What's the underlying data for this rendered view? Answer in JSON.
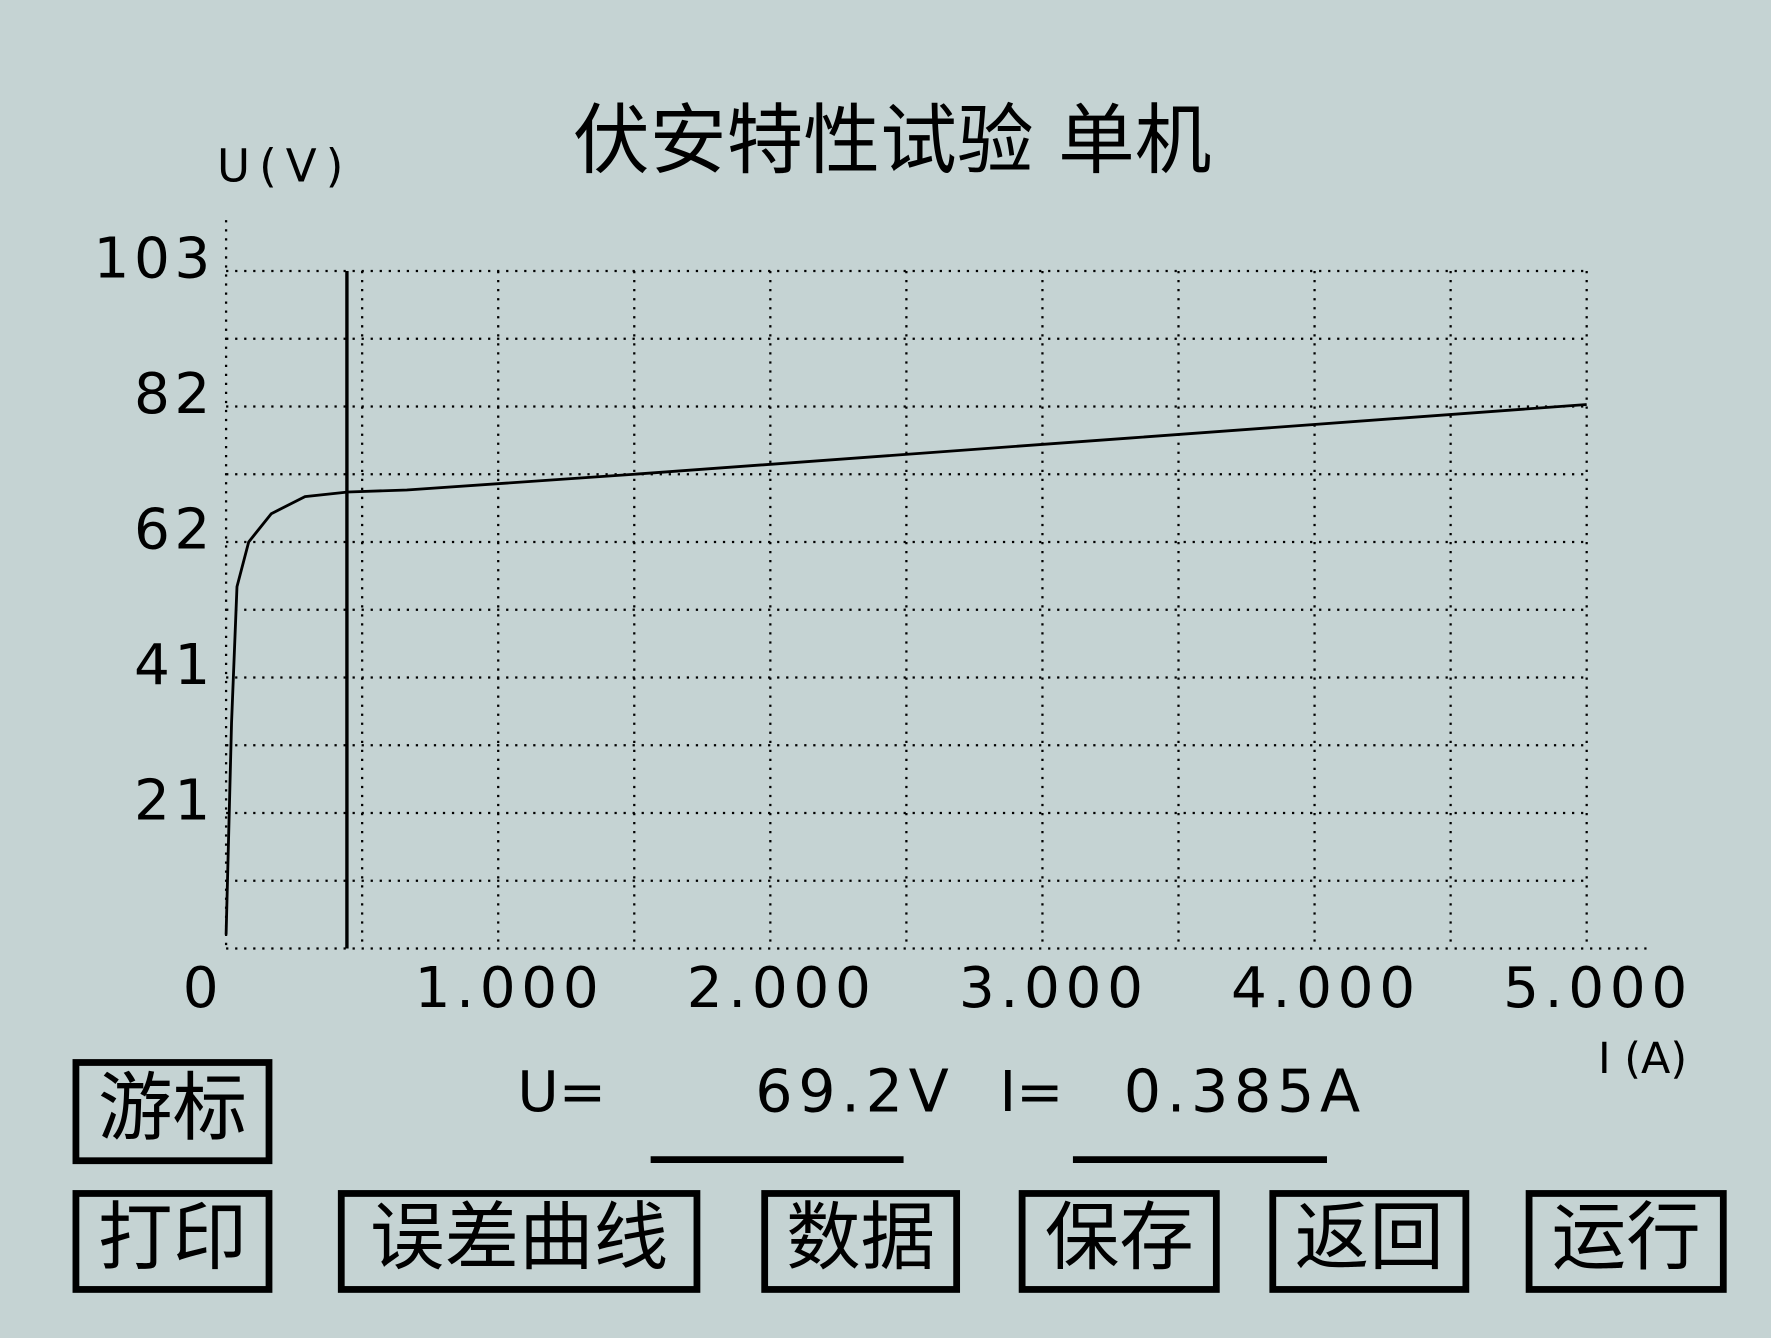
{
  "chart_data": {
    "type": "line",
    "title": "伏安特性试验  单机",
    "y_label": "U(V)",
    "x_label": "I (A)",
    "x": [
      0,
      0.02,
      0.04,
      0.083,
      0.166,
      0.29,
      0.448,
      0.664,
      1.5,
      3.32,
      5
    ],
    "values": [
      2.1,
      34.3,
      55,
      61.8,
      66.1,
      68.7,
      69.4,
      69.7,
      72.1,
      77.6,
      82.7
    ],
    "color": "#000000",
    "xlim": [
      0,
      5
    ],
    "xticks": [
      0,
      {
        "value": 1,
        "label": "1.000"
      },
      {
        "value": 2,
        "label": "2.000"
      },
      {
        "value": 3,
        "label": "3.000"
      },
      {
        "value": 4,
        "label": "4.000"
      },
      {
        "value": 5,
        "label": "5.000"
      }
    ],
    "ylim": [
      0,
      103
    ],
    "yticks": [
      {
        "value": 20.6,
        "label": "21"
      },
      {
        "value": 41.2,
        "label": "41"
      },
      {
        "value": 61.8,
        "label": "62"
      },
      {
        "value": 82.4,
        "label": "82"
      },
      103
    ],
    "grid": true,
    "cursor_x": 0.444
  },
  "readout": {
    "u_label": "U=",
    "u_value": "69.2V",
    "i_label": "I=",
    "i_value": "0.385A"
  },
  "buttons": [
    "游标",
    "打印",
    "误差曲线",
    "数据",
    "保存",
    "返回",
    "运行"
  ]
}
